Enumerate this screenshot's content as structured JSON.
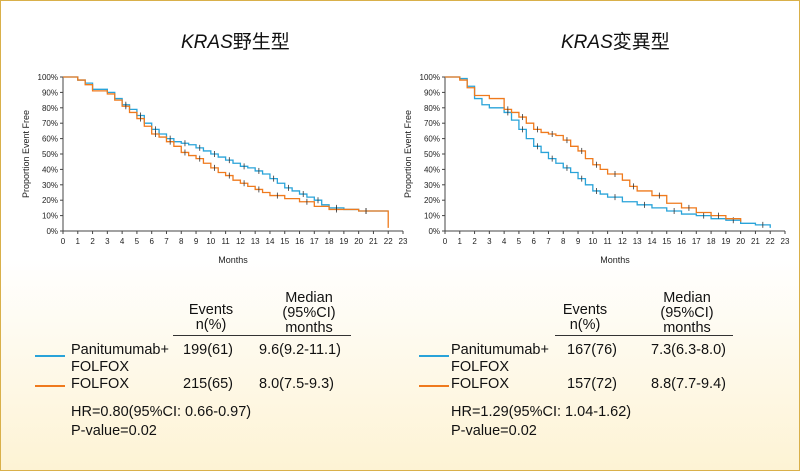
{
  "panels": [
    {
      "title_italic": "KRAS",
      "title_rest": "野生型",
      "xlabel": "Months",
      "ylabel": "Proportion Event Free",
      "table": {
        "col_events": [
          "Events",
          "n(%)"
        ],
        "col_median": [
          "Median",
          "(95%CI)",
          "months"
        ],
        "rows": [
          {
            "name_line1": "Panitumumab+",
            "name_line2": "FOLFOX",
            "events": "199(61)",
            "median": "9.6(9.2-11.1)",
            "color": "#29a3d9"
          },
          {
            "name_line1": "FOLFOX",
            "name_line2": "",
            "events": "215(65)",
            "median": "8.0(7.5-9.3)",
            "color": "#ef7a1d"
          }
        ],
        "hr": "HR=0.80(95%CI: 0.66-0.97)",
        "p": "P-value=0.02"
      }
    },
    {
      "title_italic": "KRAS",
      "title_rest": "変異型",
      "xlabel": "Months",
      "ylabel": "Proportion Event Free",
      "table": {
        "col_events": [
          "Events",
          "n(%)"
        ],
        "col_median": [
          "Median",
          "(95%CI)",
          "months"
        ],
        "rows": [
          {
            "name_line1": "Panitumumab+",
            "name_line2": "FOLFOX",
            "events": "167(76)",
            "median": "7.3(6.3-8.0)",
            "color": "#29a3d9"
          },
          {
            "name_line1": "FOLFOX",
            "name_line2": "",
            "events": "157(72)",
            "median": "8.8(7.7-9.4)",
            "color": "#ef7a1d"
          }
        ],
        "hr": "HR=1.29(95%CI: 1.04-1.62)",
        "p": "P-value=0.02"
      }
    }
  ],
  "chart_data": [
    {
      "type": "line",
      "title": "KRAS野生型",
      "xlabel": "Months",
      "ylabel": "Proportion Event Free",
      "xlim": [
        0,
        23
      ],
      "ylim": [
        0,
        100
      ],
      "xticks": [
        "0",
        "1",
        "2",
        "3",
        "4",
        "5",
        "6",
        "7",
        "8",
        "9",
        "10",
        "11",
        "12",
        "13",
        "14",
        "15",
        "16",
        "17",
        "18",
        "19",
        "20",
        "21",
        "22",
        "23"
      ],
      "yticks": [
        "0%",
        "10%",
        "20%",
        "30%",
        "40%",
        "50%",
        "60%",
        "70%",
        "80%",
        "90%",
        "100%"
      ],
      "series": [
        {
          "name": "Panitumumab+ FOLFOX",
          "color": "#29a3d9",
          "x": [
            0,
            1,
            1.5,
            2,
            3,
            3.5,
            4,
            4.5,
            5,
            5.5,
            6,
            6.5,
            7,
            7.5,
            8,
            8.5,
            9,
            9.5,
            10,
            10.5,
            11,
            11.5,
            12,
            12.5,
            13,
            13.5,
            14,
            14.5,
            15,
            15.5,
            16,
            16.5,
            17,
            17.5,
            18,
            19,
            20,
            21,
            22
          ],
          "y": [
            100,
            98,
            96,
            92,
            90,
            86,
            82,
            79,
            75,
            70,
            66,
            63,
            60,
            58,
            57,
            56,
            54,
            52,
            50,
            48,
            46,
            44,
            42,
            41,
            39,
            37,
            34,
            31,
            28,
            26,
            24,
            22,
            20,
            17,
            15,
            14,
            13,
            13,
            13
          ]
        },
        {
          "name": "FOLFOX",
          "color": "#ef7a1d",
          "x": [
            0,
            1,
            1.5,
            2,
            3,
            3.5,
            4,
            4.5,
            5,
            5.5,
            6,
            6.5,
            7,
            7.5,
            8,
            8.5,
            9,
            9.5,
            10,
            10.5,
            11,
            11.5,
            12,
            12.5,
            13,
            13.5,
            14,
            15,
            16,
            17,
            18,
            19,
            20,
            21,
            22
          ],
          "y": [
            100,
            98,
            95,
            91,
            89,
            85,
            81,
            77,
            73,
            68,
            63,
            61,
            58,
            55,
            51,
            49,
            47,
            44,
            41,
            38,
            36,
            33,
            31,
            29,
            27,
            25,
            23,
            21,
            19,
            16,
            14,
            14,
            13,
            13,
            2
          ]
        }
      ]
    },
    {
      "type": "line",
      "title": "KRAS変異型",
      "xlabel": "Months",
      "ylabel": "Proportion Event Free",
      "xlim": [
        0,
        23
      ],
      "ylim": [
        0,
        100
      ],
      "xticks": [
        "0",
        "1",
        "2",
        "3",
        "4",
        "5",
        "6",
        "7",
        "8",
        "9",
        "10",
        "11",
        "12",
        "13",
        "14",
        "15",
        "16",
        "17",
        "18",
        "19",
        "20",
        "21",
        "22",
        "23"
      ],
      "yticks": [
        "0%",
        "10%",
        "20%",
        "30%",
        "40%",
        "50%",
        "60%",
        "70%",
        "80%",
        "90%",
        "100%"
      ],
      "series": [
        {
          "name": "Panitumumab+ FOLFOX",
          "color": "#29a3d9",
          "x": [
            0,
            1,
            1.5,
            2,
            2.5,
            3,
            4,
            4.5,
            5,
            5.5,
            6,
            6.5,
            7,
            7.5,
            8,
            8.5,
            9,
            9.5,
            10,
            10.5,
            11,
            12,
            13,
            14,
            15,
            16,
            17,
            18,
            19,
            20,
            21,
            22
          ],
          "y": [
            100,
            99,
            94,
            86,
            82,
            80,
            77,
            72,
            66,
            60,
            55,
            51,
            47,
            44,
            41,
            38,
            34,
            30,
            26,
            24,
            22,
            19,
            17,
            15,
            13,
            11,
            10,
            8,
            7,
            5,
            4,
            2
          ]
        },
        {
          "name": "FOLFOX",
          "color": "#ef7a1d",
          "x": [
            0,
            1,
            1.5,
            2,
            2.5,
            3,
            4,
            4.5,
            5,
            5.5,
            6,
            6.5,
            7,
            7.5,
            8,
            8.5,
            9,
            9.5,
            10,
            10.5,
            11,
            12,
            12.5,
            13,
            14,
            15,
            16,
            17,
            18,
            19,
            20
          ],
          "y": [
            100,
            98,
            93,
            88,
            88,
            86,
            79,
            77,
            74,
            70,
            66,
            64,
            63,
            62,
            59,
            55,
            52,
            47,
            43,
            40,
            37,
            33,
            29,
            26,
            23,
            18,
            15,
            12,
            10,
            8,
            6
          ]
        }
      ]
    }
  ]
}
